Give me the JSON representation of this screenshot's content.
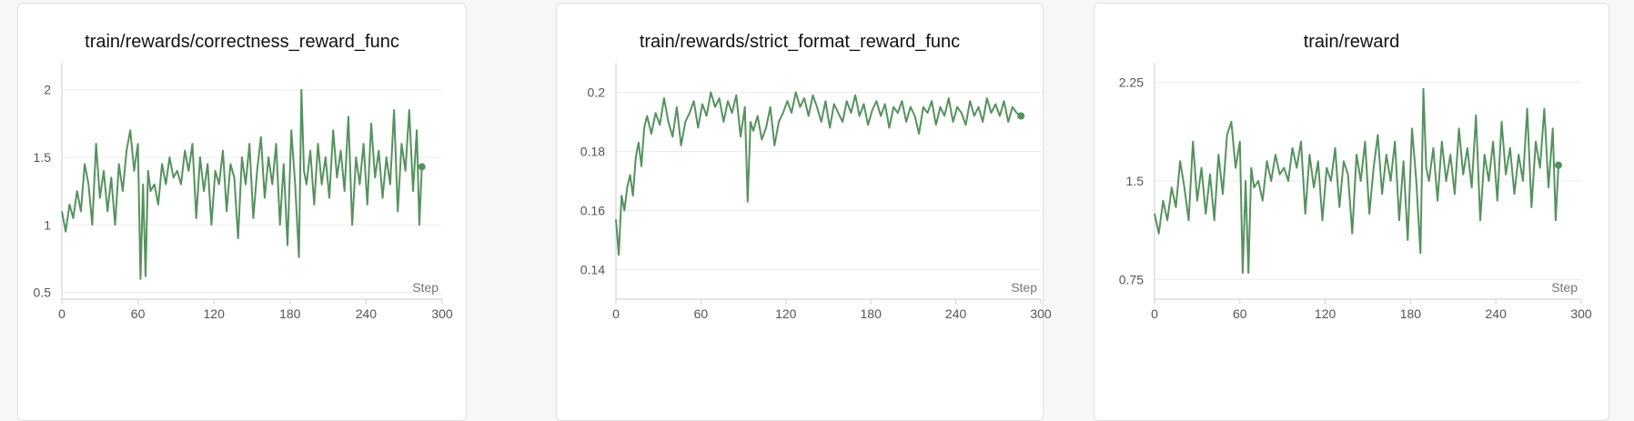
{
  "colors": {
    "line": "#55925e",
    "grid": "#ebebeb",
    "axis": "#cccccc",
    "tick_text": "#555555"
  },
  "chart_data": [
    {
      "type": "line",
      "title": "train/rewards/correctness_reward_func",
      "xlabel": "Step",
      "ylabel": "",
      "xlim": [
        0,
        300
      ],
      "ylim": [
        0.45,
        2.2
      ],
      "x_ticks": [
        0,
        60,
        120,
        180,
        240,
        300
      ],
      "y_ticks": [
        0.5,
        1,
        1.5,
        2
      ],
      "y_tick_labels": [
        "0.5",
        "1",
        "1.5",
        "2"
      ],
      "grid": true,
      "last_point_marker": true,
      "series": [
        {
          "x": [
            0,
            3,
            6,
            9,
            12,
            15,
            18,
            21,
            24,
            27,
            30,
            33,
            36,
            39,
            42,
            45,
            48,
            51,
            54,
            57,
            60,
            62,
            64,
            66,
            68,
            70,
            73,
            76,
            79,
            82,
            85,
            88,
            91,
            94,
            97,
            100,
            103,
            106,
            109,
            112,
            115,
            118,
            121,
            124,
            127,
            130,
            133,
            136,
            139,
            142,
            145,
            148,
            151,
            154,
            157,
            160,
            163,
            166,
            169,
            172,
            175,
            178,
            181,
            184,
            187,
            189,
            191,
            193,
            196,
            199,
            202,
            205,
            208,
            211,
            214,
            217,
            220,
            223,
            226,
            229,
            232,
            235,
            238,
            241,
            244,
            247,
            250,
            253,
            256,
            259,
            262,
            265,
            268,
            271,
            274,
            277,
            280,
            282,
            284
          ],
          "y": [
            1.1,
            0.95,
            1.15,
            1.05,
            1.25,
            1.1,
            1.45,
            1.3,
            1.0,
            1.6,
            1.2,
            1.4,
            1.1,
            1.35,
            1.0,
            1.45,
            1.25,
            1.55,
            1.7,
            1.4,
            1.6,
            0.6,
            1.3,
            0.62,
            1.4,
            1.25,
            1.3,
            1.15,
            1.45,
            1.3,
            1.5,
            1.35,
            1.4,
            1.3,
            1.55,
            1.4,
            1.6,
            1.05,
            1.5,
            1.25,
            1.45,
            1.0,
            1.4,
            1.3,
            1.55,
            1.1,
            1.45,
            1.35,
            0.9,
            1.5,
            1.3,
            1.6,
            1.05,
            1.4,
            1.65,
            1.2,
            1.5,
            1.3,
            1.6,
            1.0,
            1.45,
            0.85,
            1.7,
            1.3,
            0.76,
            2.0,
            1.4,
            1.3,
            1.55,
            1.15,
            1.6,
            1.3,
            1.5,
            1.2,
            1.7,
            1.35,
            1.55,
            1.25,
            1.8,
            1.0,
            1.5,
            1.3,
            1.6,
            1.15,
            1.75,
            1.35,
            1.55,
            1.2,
            1.5,
            1.3,
            1.85,
            1.1,
            1.6,
            1.4,
            1.85,
            1.25,
            1.7,
            1.0,
            1.43
          ]
        }
      ]
    },
    {
      "type": "line",
      "title": "train/rewards/strict_format_reward_func",
      "xlabel": "Step",
      "ylabel": "",
      "xlim": [
        0,
        300
      ],
      "ylim": [
        0.13,
        0.21
      ],
      "x_ticks": [
        0,
        60,
        120,
        180,
        240,
        300
      ],
      "y_ticks": [
        0.14,
        0.16,
        0.18,
        0.2
      ],
      "y_tick_labels": [
        "0.14",
        "0.16",
        "0.18",
        "0.2"
      ],
      "grid": true,
      "last_point_marker": true,
      "series": [
        {
          "x": [
            0,
            2,
            4,
            6,
            8,
            10,
            12,
            14,
            16,
            18,
            20,
            22,
            25,
            28,
            31,
            34,
            37,
            40,
            43,
            46,
            49,
            52,
            55,
            58,
            61,
            64,
            67,
            70,
            73,
            76,
            79,
            82,
            85,
            88,
            91,
            93,
            95,
            97,
            100,
            103,
            106,
            109,
            112,
            115,
            118,
            121,
            124,
            127,
            130,
            133,
            136,
            139,
            142,
            145,
            148,
            151,
            154,
            157,
            160,
            163,
            166,
            169,
            172,
            175,
            178,
            181,
            184,
            187,
            190,
            193,
            196,
            199,
            202,
            205,
            208,
            211,
            214,
            217,
            220,
            223,
            226,
            229,
            232,
            235,
            238,
            241,
            244,
            247,
            250,
            253,
            256,
            259,
            262,
            265,
            268,
            271,
            274,
            277,
            280,
            283,
            286
          ],
          "y": [
            0.157,
            0.145,
            0.165,
            0.16,
            0.168,
            0.172,
            0.165,
            0.178,
            0.183,
            0.175,
            0.188,
            0.192,
            0.186,
            0.193,
            0.189,
            0.198,
            0.19,
            0.185,
            0.195,
            0.182,
            0.19,
            0.193,
            0.197,
            0.188,
            0.196,
            0.192,
            0.2,
            0.195,
            0.198,
            0.19,
            0.197,
            0.193,
            0.199,
            0.185,
            0.195,
            0.163,
            0.19,
            0.187,
            0.192,
            0.184,
            0.188,
            0.195,
            0.182,
            0.19,
            0.193,
            0.197,
            0.193,
            0.2,
            0.195,
            0.198,
            0.192,
            0.199,
            0.195,
            0.19,
            0.197,
            0.188,
            0.196,
            0.193,
            0.19,
            0.197,
            0.193,
            0.199,
            0.192,
            0.196,
            0.189,
            0.194,
            0.197,
            0.192,
            0.196,
            0.188,
            0.195,
            0.193,
            0.197,
            0.19,
            0.195,
            0.192,
            0.186,
            0.195,
            0.193,
            0.197,
            0.189,
            0.195,
            0.192,
            0.198,
            0.19,
            0.195,
            0.193,
            0.189,
            0.197,
            0.192,
            0.195,
            0.19,
            0.198,
            0.193,
            0.196,
            0.192,
            0.197,
            0.19,
            0.195,
            0.193,
            0.192
          ]
        }
      ]
    },
    {
      "type": "line",
      "title": "train/reward",
      "xlabel": "Step",
      "ylabel": "",
      "xlim": [
        0,
        300
      ],
      "ylim": [
        0.6,
        2.4
      ],
      "x_ticks": [
        0,
        60,
        120,
        180,
        240,
        300
      ],
      "y_ticks": [
        0.75,
        1.5,
        2.25
      ],
      "y_tick_labels": [
        "0.75",
        "1.5",
        "2.25"
      ],
      "grid": true,
      "last_point_marker": true,
      "series": [
        {
          "x": [
            0,
            3,
            6,
            9,
            12,
            15,
            18,
            21,
            24,
            27,
            30,
            33,
            36,
            39,
            42,
            45,
            48,
            51,
            54,
            57,
            60,
            62,
            64,
            66,
            68,
            70,
            73,
            76,
            79,
            82,
            85,
            88,
            91,
            94,
            97,
            100,
            103,
            106,
            109,
            112,
            115,
            118,
            121,
            124,
            127,
            130,
            133,
            136,
            139,
            142,
            145,
            148,
            151,
            154,
            157,
            160,
            163,
            166,
            169,
            172,
            175,
            178,
            181,
            184,
            187,
            189,
            191,
            193,
            196,
            199,
            202,
            205,
            208,
            211,
            214,
            217,
            220,
            223,
            226,
            229,
            232,
            235,
            238,
            241,
            244,
            247,
            250,
            253,
            256,
            259,
            262,
            265,
            268,
            271,
            274,
            277,
            280,
            282,
            284
          ],
          "y": [
            1.25,
            1.1,
            1.35,
            1.2,
            1.45,
            1.3,
            1.65,
            1.45,
            1.2,
            1.8,
            1.35,
            1.6,
            1.25,
            1.55,
            1.2,
            1.7,
            1.4,
            1.85,
            1.95,
            1.6,
            1.8,
            0.8,
            1.5,
            0.8,
            1.6,
            1.45,
            1.5,
            1.35,
            1.65,
            1.5,
            1.7,
            1.55,
            1.6,
            1.5,
            1.75,
            1.6,
            1.8,
            1.25,
            1.7,
            1.45,
            1.65,
            1.2,
            1.6,
            1.5,
            1.75,
            1.3,
            1.65,
            1.55,
            1.1,
            1.7,
            1.5,
            1.8,
            1.25,
            1.6,
            1.85,
            1.4,
            1.7,
            1.5,
            1.8,
            1.2,
            1.65,
            1.05,
            1.9,
            1.5,
            0.95,
            2.2,
            1.6,
            1.5,
            1.75,
            1.35,
            1.8,
            1.5,
            1.7,
            1.4,
            1.9,
            1.55,
            1.75,
            1.45,
            2.0,
            1.2,
            1.7,
            1.5,
            1.8,
            1.35,
            1.95,
            1.55,
            1.75,
            1.4,
            1.7,
            1.5,
            2.05,
            1.3,
            1.8,
            1.6,
            2.05,
            1.45,
            1.9,
            1.2,
            1.62
          ]
        }
      ]
    }
  ]
}
